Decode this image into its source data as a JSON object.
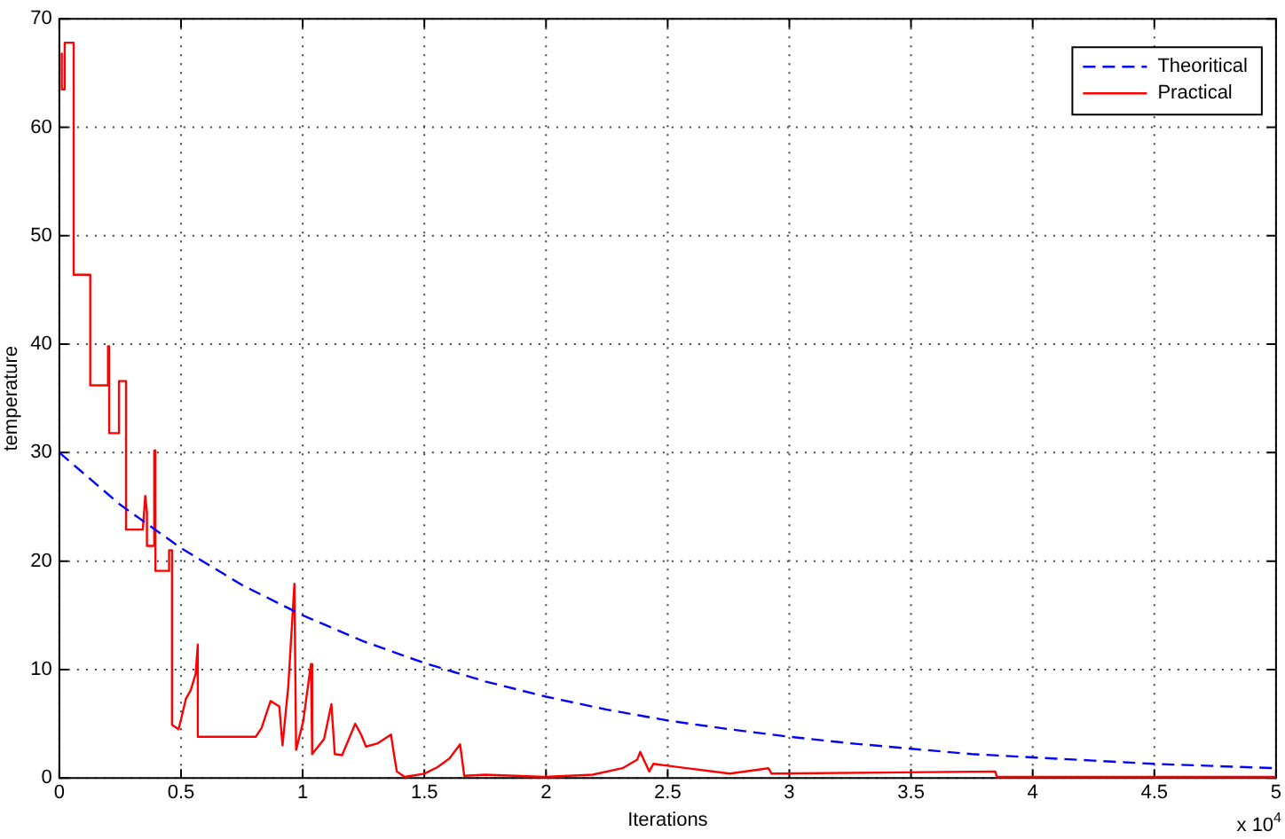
{
  "chart_data": {
    "type": "line",
    "xlabel": "Iterations",
    "ylabel": "temperature",
    "xlim": [
      0,
      5
    ],
    "ylim": [
      0,
      70
    ],
    "xticks": [
      0,
      0.5,
      1,
      1.5,
      2,
      2.5,
      3,
      3.5,
      4,
      4.5,
      5
    ],
    "yticks": [
      0,
      10,
      20,
      30,
      40,
      50,
      60,
      70
    ],
    "grid": true,
    "legend": "top right",
    "marker": "none",
    "annotations": [
      "x 10$^{4}$"
    ],
    "series": [
      {
        "name": "Theoritical",
        "color": "#0000ff",
        "line_style": "dashed",
        "x": [
          0,
          0.25,
          0.5,
          0.75,
          1,
          1.25,
          1.5,
          1.75,
          2,
          2.25,
          2.5,
          2.75,
          3,
          3.25,
          3.5,
          3.75,
          4,
          4.25,
          4.5,
          4.75,
          5
        ],
        "values": [
          30,
          25.2,
          21.2,
          17.8,
          15,
          12.6,
          10.6,
          8.9,
          7.5,
          6.3,
          5.3,
          4.5,
          3.8,
          3.2,
          2.7,
          2.2,
          1.9,
          1.6,
          1.3,
          1.1,
          0.9
        ]
      },
      {
        "name": "Practical",
        "color": "#ff0000",
        "line_style": "solid",
        "x": [
          0.01,
          0.01,
          0.022,
          0.022,
          0.059,
          0.059,
          0.127,
          0.127,
          0.2,
          0.2,
          0.205,
          0.205,
          0.245,
          0.245,
          0.274,
          0.274,
          0.343,
          0.353,
          0.36,
          0.36,
          0.39,
          0.39,
          0.395,
          0.395,
          0.451,
          0.451,
          0.463,
          0.463,
          0.49,
          0.5,
          0.52,
          0.54,
          0.56,
          0.569,
          0.569,
          0.807,
          0.831,
          0.868,
          0.904,
          0.917,
          0.941,
          0.966,
          0.973,
          1.002,
          1.034,
          1.039,
          1.088,
          1.118,
          1.132,
          1.162,
          1.216,
          1.24,
          1.26,
          1.309,
          1.363,
          1.375,
          1.387,
          1.419,
          1.5,
          1.554,
          1.603,
          1.647,
          1.664,
          1.75,
          1.995,
          2.191,
          2.314,
          2.375,
          2.387,
          2.424,
          2.441,
          2.755,
          2.914,
          2.927,
          3.846,
          3.853,
          5
        ],
        "values": [
          66.8,
          63.5,
          63.5,
          67.8,
          67.8,
          46.4,
          46.4,
          36.2,
          36.2,
          39.8,
          39.8,
          31.8,
          31.8,
          36.6,
          36.6,
          22.9,
          22.9,
          26,
          24.5,
          21.4,
          21.4,
          30.2,
          30.2,
          19.1,
          19.1,
          21,
          21,
          4.9,
          4.5,
          5.4,
          7.3,
          8.1,
          9.6,
          12.3,
          3.8,
          3.8,
          4.6,
          7.1,
          6.6,
          3,
          8.5,
          17.9,
          2.6,
          5.2,
          10.5,
          2.2,
          3.6,
          6.8,
          2.2,
          2.1,
          5,
          4,
          2.9,
          3.2,
          4,
          2.2,
          0.6,
          0.1,
          0.4,
          1,
          1.8,
          3.1,
          0.2,
          0.3,
          0.1,
          0.3,
          0.9,
          1.7,
          2.4,
          0.6,
          1.3,
          0.4,
          0.9,
          0.4,
          0.6,
          0.1,
          0.1
        ]
      }
    ]
  }
}
